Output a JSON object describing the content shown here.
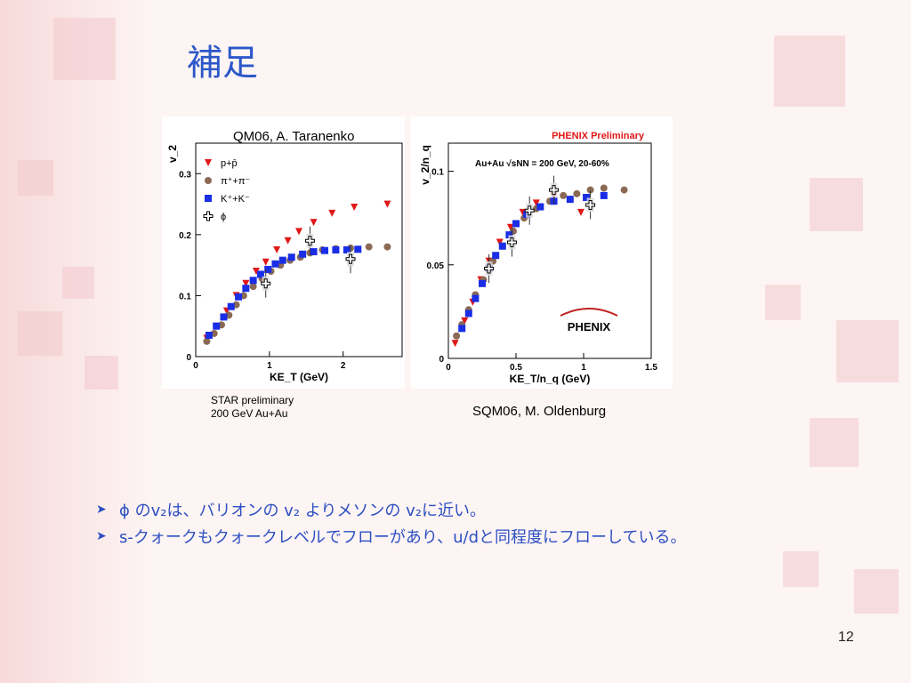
{
  "slide": {
    "title": "補足",
    "page_number": "12",
    "left_credit": "QM06,  A. Taranenko",
    "right_credit": "SQM06,  M. Oldenburg",
    "star_note_line1": "STAR preliminary",
    "star_note_line2": "200 GeV Au+Au",
    "bullets": [
      "ϕ のv₂は、バリオンの v₂ よりメソンの v₂に近い。",
      "s-クォークもクォークレベルでフローがあり、u/dと同程度にフローしている。"
    ]
  },
  "colors": {
    "red": "#e01818",
    "brown": "#8a6a55",
    "blue": "#1a2ee6",
    "title_blue": "#2b57c9"
  },
  "chart_data": [
    {
      "type": "scatter",
      "title": "",
      "xlabel": "KE_T (GeV)",
      "ylabel": "v_2",
      "xlim": [
        0,
        2.8
      ],
      "ylim": [
        0,
        0.35
      ],
      "xticks": [
        "0",
        "1",
        "2"
      ],
      "yticks": [
        "0",
        "0.1",
        "0.2",
        "0.3"
      ],
      "legend_position": "top-left",
      "series": [
        {
          "name": "p+p̄",
          "marker": "triangle-down",
          "color": "#e01818",
          "x": [
            0.15,
            0.28,
            0.42,
            0.55,
            0.68,
            0.82,
            0.95,
            1.1,
            1.25,
            1.4,
            1.6,
            1.85,
            2.15,
            2.6
          ],
          "y": [
            0.03,
            0.05,
            0.075,
            0.1,
            0.12,
            0.14,
            0.155,
            0.175,
            0.19,
            0.205,
            0.22,
            0.235,
            0.245,
            0.25
          ]
        },
        {
          "name": "π⁺+π⁻",
          "marker": "circle",
          "color": "#8a6a55",
          "x": [
            0.15,
            0.25,
            0.35,
            0.45,
            0.55,
            0.65,
            0.78,
            0.9,
            1.02,
            1.15,
            1.28,
            1.42,
            1.55,
            1.72,
            1.9,
            2.1,
            2.35,
            2.6
          ],
          "y": [
            0.025,
            0.038,
            0.052,
            0.068,
            0.085,
            0.1,
            0.115,
            0.128,
            0.14,
            0.15,
            0.158,
            0.163,
            0.17,
            0.175,
            0.177,
            0.178,
            0.18,
            0.18
          ]
        },
        {
          "name": "K⁺+K⁻",
          "marker": "square",
          "color": "#1a2ee6",
          "x": [
            0.18,
            0.28,
            0.38,
            0.48,
            0.58,
            0.68,
            0.78,
            0.88,
            0.98,
            1.08,
            1.18,
            1.3,
            1.45,
            1.6,
            1.75,
            1.9,
            2.05,
            2.2
          ],
          "y": [
            0.035,
            0.05,
            0.065,
            0.082,
            0.098,
            0.112,
            0.125,
            0.135,
            0.143,
            0.152,
            0.158,
            0.163,
            0.168,
            0.172,
            0.174,
            0.175,
            0.175,
            0.176
          ]
        },
        {
          "name": "ϕ",
          "marker": "open-cross",
          "color": "#000000",
          "x": [
            0.95,
            1.55,
            2.1
          ],
          "y": [
            0.12,
            0.19,
            0.16
          ]
        }
      ]
    },
    {
      "type": "scatter",
      "title": "PHENIX Preliminary",
      "annotation": "Au+Au √sNN = 200 GeV, 20-60%",
      "logo_text": "PHENIX",
      "xlabel": "KE_T/n_q (GeV)",
      "ylabel": "v_2/n_q",
      "xlim": [
        0,
        1.5
      ],
      "ylim": [
        0,
        0.115
      ],
      "xticks": [
        "0",
        "0.5",
        "1",
        "1.5"
      ],
      "yticks": [
        "0",
        "0.05",
        "0.1"
      ],
      "series": [
        {
          "name": "",
          "marker": "triangle-down",
          "color": "#e01818",
          "x": [
            0.05,
            0.12,
            0.18,
            0.24,
            0.3,
            0.38,
            0.46,
            0.55,
            0.65,
            0.78,
            0.98
          ],
          "y": [
            0.008,
            0.02,
            0.03,
            0.042,
            0.052,
            0.062,
            0.07,
            0.078,
            0.083,
            0.087,
            0.078
          ]
        },
        {
          "name": "",
          "marker": "circle",
          "color": "#8a6a55",
          "x": [
            0.06,
            0.1,
            0.15,
            0.2,
            0.26,
            0.33,
            0.4,
            0.48,
            0.56,
            0.65,
            0.75,
            0.85,
            0.95,
            1.05,
            1.15,
            1.3
          ],
          "y": [
            0.012,
            0.018,
            0.026,
            0.034,
            0.042,
            0.052,
            0.06,
            0.068,
            0.075,
            0.08,
            0.084,
            0.087,
            0.088,
            0.09,
            0.091,
            0.09
          ]
        },
        {
          "name": "",
          "marker": "square",
          "color": "#1a2ee6",
          "x": [
            0.1,
            0.15,
            0.2,
            0.25,
            0.3,
            0.35,
            0.4,
            0.45,
            0.5,
            0.58,
            0.68,
            0.78,
            0.9,
            1.02,
            1.15
          ],
          "y": [
            0.016,
            0.024,
            0.032,
            0.04,
            0.048,
            0.055,
            0.06,
            0.066,
            0.072,
            0.077,
            0.081,
            0.084,
            0.085,
            0.086,
            0.087
          ]
        },
        {
          "name": "",
          "marker": "open-cross",
          "color": "#000000",
          "x": [
            0.3,
            0.47,
            0.6,
            0.78,
            1.05
          ],
          "y": [
            0.048,
            0.062,
            0.079,
            0.09,
            0.082
          ]
        }
      ]
    }
  ]
}
